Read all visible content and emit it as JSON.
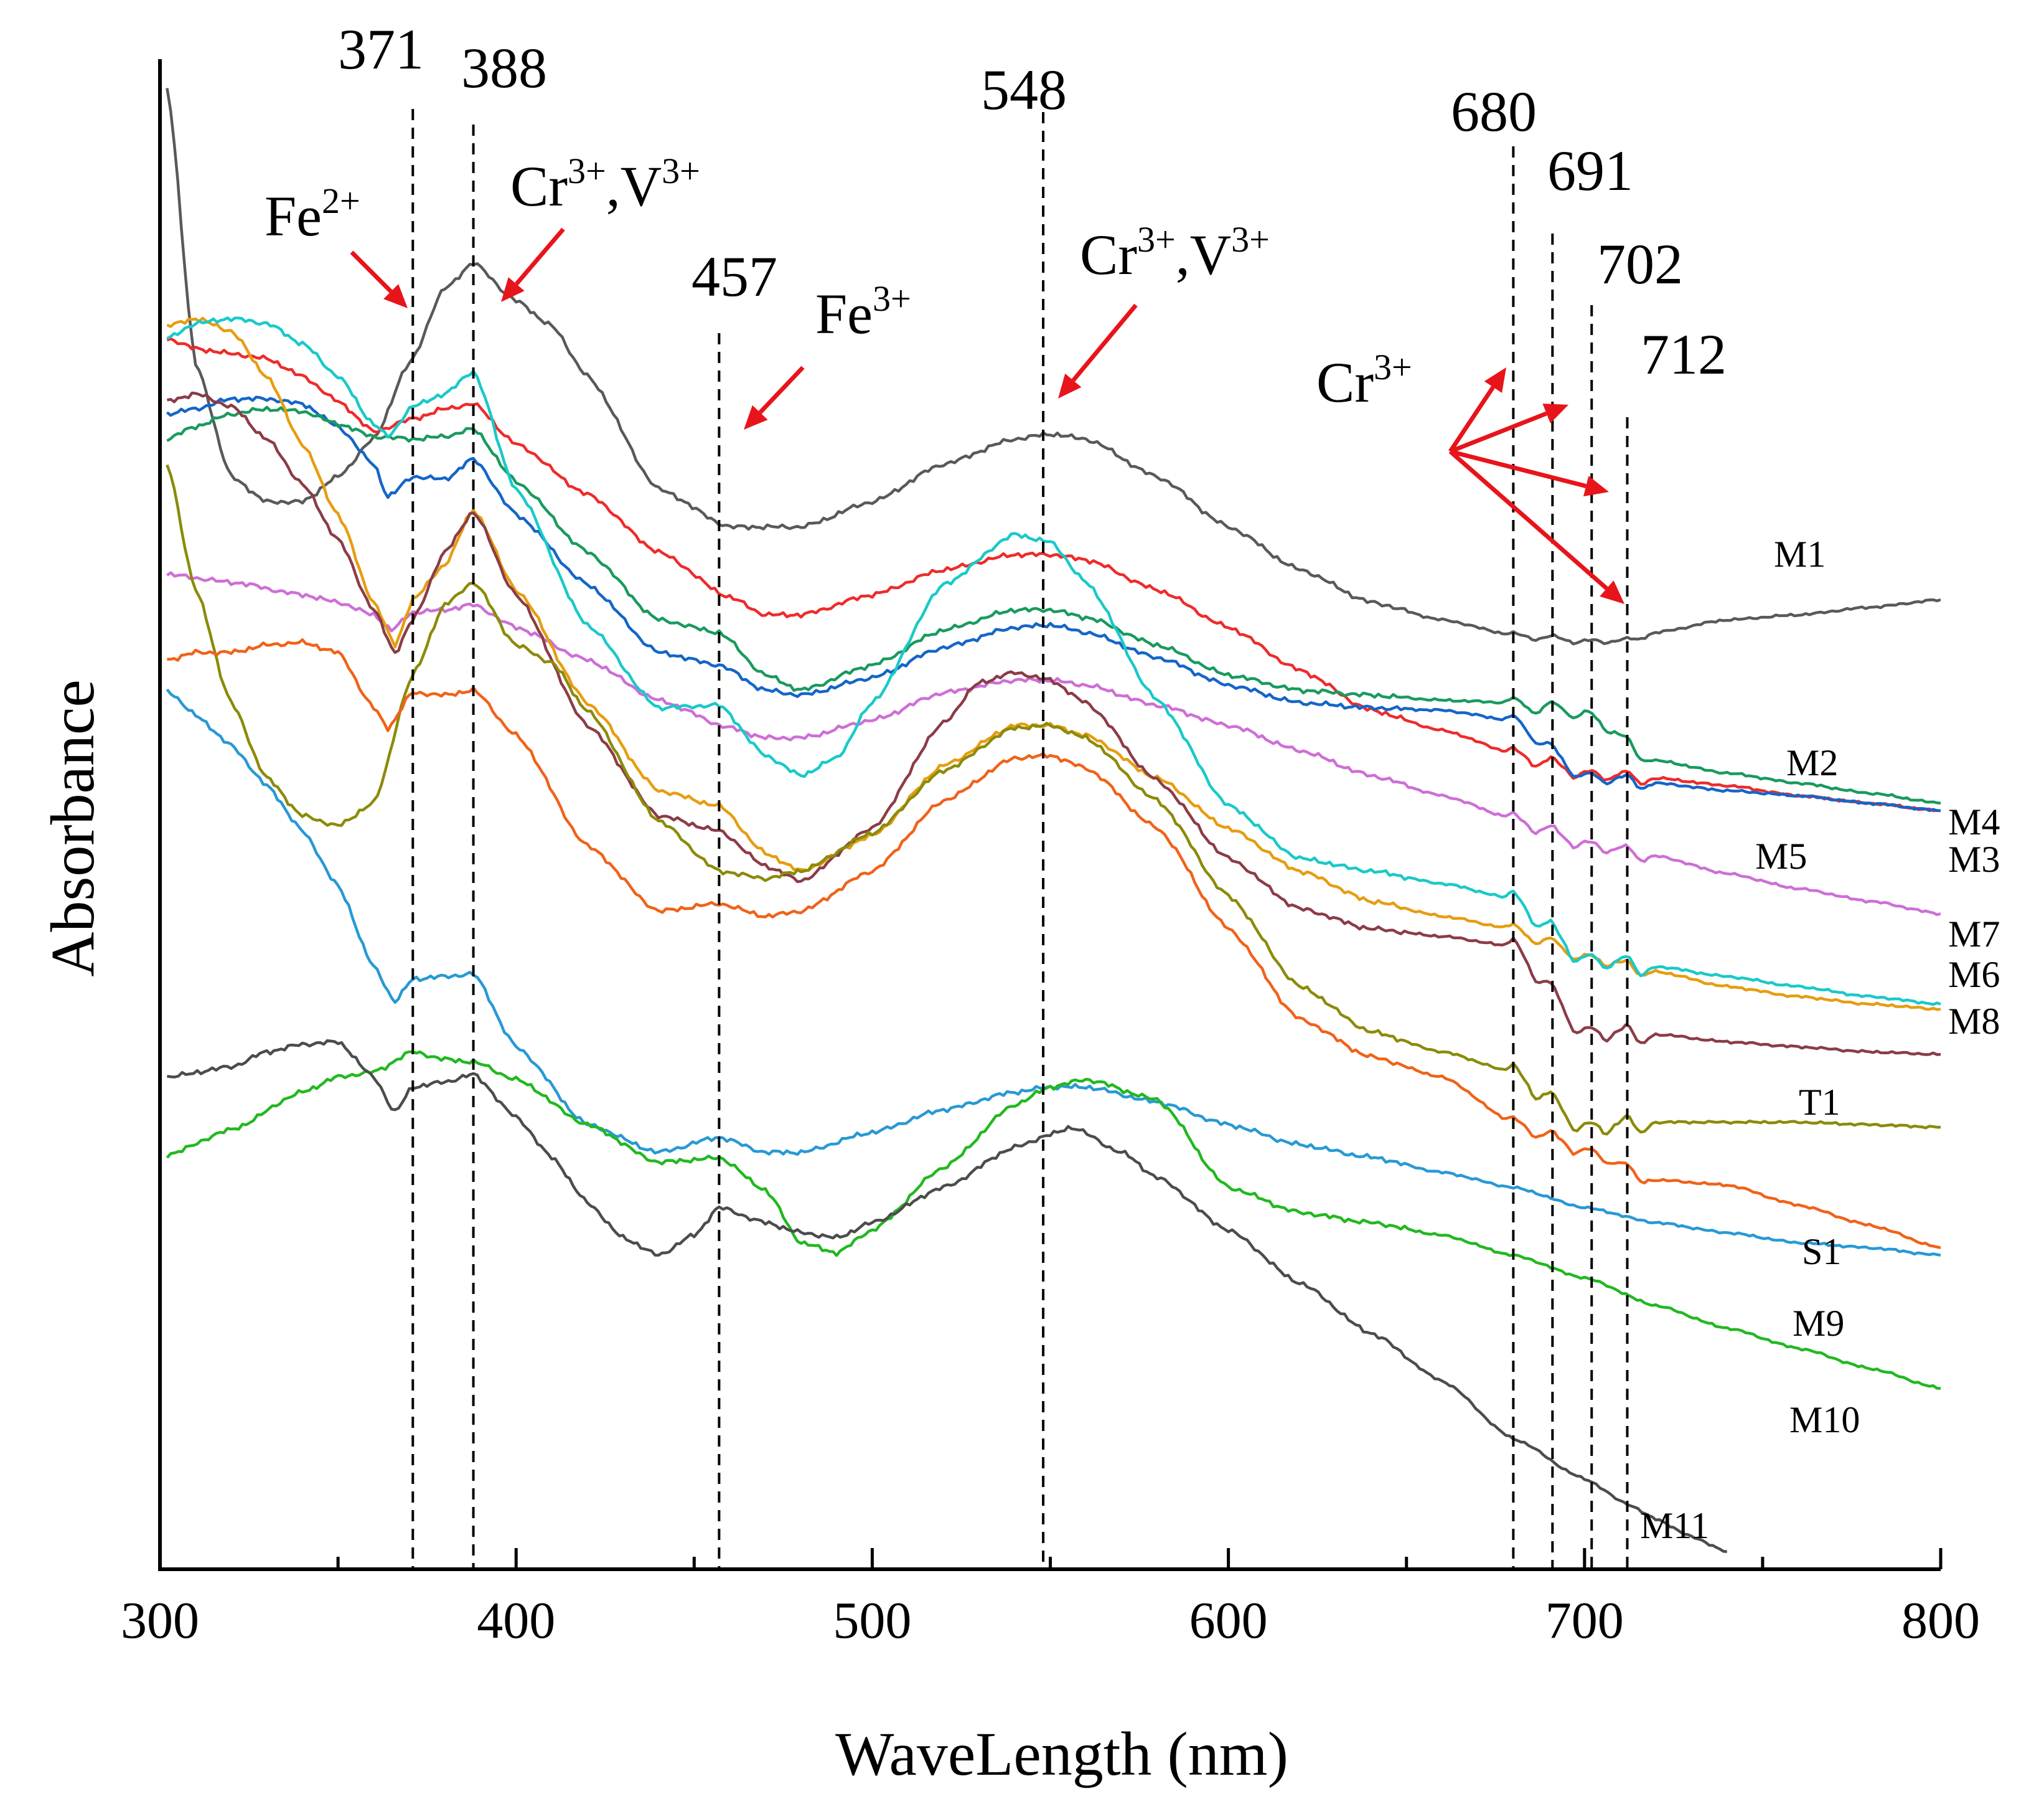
{
  "chart_data": {
    "type": "line",
    "title": "",
    "xlabel": "WaveLength (nm)",
    "ylabel": "Absorbance",
    "xlim": [
      300,
      800
    ],
    "x_ticks": [
      300,
      400,
      500,
      600,
      700,
      800
    ],
    "grid": false,
    "legend": "inline labels at right end of curves",
    "peak_lines": [
      {
        "x": 371,
        "label": "371"
      },
      {
        "x": 388,
        "label": "388"
      },
      {
        "x": 457,
        "label": "457"
      },
      {
        "x": 548,
        "label": "548"
      },
      {
        "x": 680,
        "label": "680"
      },
      {
        "x": 691,
        "label": "691"
      },
      {
        "x": 702,
        "label": "702"
      },
      {
        "x": 712,
        "label": "712"
      }
    ],
    "annotations": [
      {
        "text": "Fe",
        "sup": "2+",
        "arrow_color": "#e8141b"
      },
      {
        "text": "Cr",
        "sup": "3+",
        "text2": ",V",
        "sup2": "3+",
        "arrow_color": "#e8141b"
      },
      {
        "text": "Fe",
        "sup": "3+",
        "arrow_color": "#e8141b"
      },
      {
        "text": "Cr",
        "sup": "3+",
        "text2": ",V",
        "sup2": "3+",
        "arrow_color": "#e8141b"
      },
      {
        "text": "Cr",
        "sup": "3+",
        "arrow_color": "#e8141b"
      }
    ],
    "series": [
      {
        "name": "M1",
        "color": "#595959",
        "x": [
          302,
          310,
          320,
          330,
          340,
          350,
          360,
          370,
          380,
          388,
          400,
          410,
          420,
          440,
          460,
          480,
          500,
          520,
          540,
          550,
          560,
          580,
          600,
          620,
          640,
          660,
          680,
          700,
          712,
          720,
          740,
          760,
          780,
          800
        ],
        "y": [
          99,
          88,
          83.5,
          82.5,
          82.5,
          83.5,
          85,
          88,
          91,
          92,
          90.5,
          89.5,
          87.5,
          83,
          81.5,
          81.5,
          82.5,
          84,
          85,
          85.2,
          85,
          83.5,
          81.5,
          79.8,
          78.5,
          77.8,
          77.2,
          77,
          77,
          77.3,
          77.8,
          78,
          78.3,
          78.6
        ]
      },
      {
        "name": "M2",
        "color": "#ee2b2b",
        "x": [
          302,
          310,
          320,
          330,
          340,
          350,
          360,
          371,
          380,
          388,
          400,
          420,
          440,
          460,
          470,
          480,
          500,
          520,
          540,
          550,
          560,
          580,
          600,
          620,
          640,
          660,
          680,
          700,
          720,
          740,
          760,
          780,
          800
        ],
        "y": [
          89,
          88.6,
          88.4,
          88.2,
          87.5,
          86.5,
          85.3,
          85.8,
          86.2,
          86.4,
          84.8,
          82.8,
          80.5,
          78.7,
          78,
          78,
          78.8,
          79.8,
          80.4,
          80.4,
          80.2,
          79,
          77.5,
          75.8,
          74.2,
          73.4,
          72.5,
          71.8,
          71.5,
          71.2,
          70.8,
          70.5,
          70.2
        ]
      },
      {
        "name": "M3",
        "color": "#1565c8",
        "x": [
          302,
          310,
          320,
          330,
          340,
          350,
          360,
          364,
          371,
          380,
          388,
          400,
          420,
          440,
          457,
          470,
          480,
          500,
          520,
          540,
          550,
          560,
          580,
          600,
          620,
          640,
          660,
          680,
          700,
          720,
          740,
          760,
          780,
          800
        ],
        "y": [
          86,
          86.2,
          86.6,
          86.6,
          86.4,
          85.5,
          84,
          82.7,
          83.5,
          83.4,
          84.2,
          82,
          79.2,
          76.5,
          76,
          75,
          74.8,
          75.5,
          76.7,
          77.5,
          77.6,
          77.3,
          76.3,
          75.2,
          74.5,
          74.3,
          74.2,
          73.8,
          71.7,
          71.3,
          71,
          70.8,
          70.5,
          70.2
        ]
      },
      {
        "name": "M4",
        "color": "#1a9a5e",
        "x": [
          302,
          310,
          320,
          330,
          340,
          350,
          360,
          371,
          380,
          388,
          400,
          420,
          440,
          457,
          470,
          480,
          500,
          520,
          540,
          550,
          560,
          580,
          600,
          620,
          640,
          660,
          680,
          700,
          720,
          740,
          760,
          780,
          800
        ],
        "y": [
          85,
          85.5,
          86,
          86.2,
          86.1,
          85.6,
          85.1,
          85,
          85.1,
          85.4,
          83.3,
          80.5,
          77.8,
          77.3,
          75.6,
          75,
          76,
          77.4,
          78.2,
          78.2,
          77.9,
          76.8,
          75.6,
          75,
          74.8,
          74.6,
          74.5,
          74.2,
          72.2,
          71.7,
          71.3,
          70.9,
          70.5
        ]
      },
      {
        "name": "M5",
        "color": "#cd6fd6",
        "x": [
          302,
          320,
          340,
          350,
          360,
          365,
          371,
          380,
          388,
          400,
          420,
          440,
          460,
          470,
          480,
          500,
          520,
          540,
          550,
          560,
          580,
          600,
          620,
          640,
          660,
          680,
          700,
          720,
          740,
          760,
          780,
          800
        ],
        "y": [
          79.6,
          79.3,
          78.8,
          78.5,
          78,
          77.4,
          78.1,
          78.2,
          78.4,
          77.5,
          76.2,
          74.6,
          73.5,
          73.1,
          73.1,
          73.8,
          74.9,
          75.4,
          75.4,
          75.2,
          74.4,
          73.6,
          72.6,
          71.6,
          70.8,
          69.9,
          69,
          68.4,
          67.7,
          67.1,
          66.6,
          66.1
        ]
      },
      {
        "name": "M6",
        "color": "#e69d10",
        "x": [
          302,
          310,
          320,
          330,
          340,
          350,
          360,
          366,
          371,
          380,
          388,
          400,
          420,
          440,
          457,
          470,
          480,
          500,
          520,
          540,
          550,
          560,
          580,
          600,
          620,
          640,
          660,
          680,
          700,
          720,
          740,
          760,
          780,
          800
        ],
        "y": [
          89.5,
          89.8,
          89.3,
          87.5,
          84.8,
          82,
          78.5,
          76.8,
          78.6,
          80,
          82.2,
          79,
          74.5,
          71,
          70.4,
          68.5,
          67.8,
          69.2,
          72,
          73.6,
          73.6,
          73.2,
          71.5,
          69.5,
          67.8,
          66.6,
          66,
          65.5,
          64.5,
          63.8,
          63.2,
          62.8,
          62.5,
          62.3
        ]
      },
      {
        "name": "M7",
        "color": "#1ac9c9",
        "x": [
          302,
          310,
          320,
          330,
          340,
          350,
          360,
          364,
          371,
          380,
          388,
          400,
          420,
          440,
          457,
          470,
          480,
          490,
          500,
          520,
          540,
          550,
          560,
          580,
          600,
          620,
          640,
          660,
          680,
          700,
          720,
          740,
          760,
          780,
          800
        ],
        "y": [
          89,
          89.6,
          89.8,
          89.6,
          88.8,
          87.5,
          85.6,
          85.1,
          86.3,
          86.8,
          87.7,
          83,
          77.6,
          74.3,
          74.4,
          72.4,
          71.6,
          72.3,
          74.5,
          79.2,
          81.2,
          80.9,
          79.3,
          74.6,
          70.4,
          68.3,
          67.8,
          67.3,
          66.7,
          64.5,
          64,
          63.6,
          63.2,
          62.8,
          62.5
        ]
      },
      {
        "name": "M8",
        "color": "#8b3c47",
        "x": [
          302,
          310,
          320,
          330,
          340,
          350,
          360,
          366,
          371,
          380,
          388,
          400,
          420,
          440,
          457,
          470,
          480,
          500,
          520,
          530,
          540,
          550,
          560,
          580,
          600,
          620,
          640,
          660,
          680,
          700,
          720,
          740,
          760,
          780,
          800
        ],
        "y": [
          86.5,
          86.8,
          86.3,
          85,
          83.2,
          81,
          78.2,
          76.5,
          77.8,
          80.5,
          82.1,
          78.8,
          73.6,
          70,
          69.4,
          68,
          67.4,
          69.5,
          73.7,
          75.3,
          75.7,
          75.4,
          74.5,
          71.4,
          68.3,
          66.3,
          65.5,
          65.2,
          64.8,
          61.6,
          61.3,
          61,
          60.8,
          60.6,
          60.5
        ]
      },
      {
        "name": "T1",
        "color": "#8b8b0b",
        "x": [
          302,
          310,
          320,
          330,
          340,
          350,
          360,
          371,
          380,
          388,
          400,
          410,
          420,
          440,
          457,
          470,
          480,
          500,
          520,
          540,
          550,
          560,
          580,
          600,
          620,
          640,
          660,
          680,
          700,
          720,
          740,
          760,
          780,
          800
        ],
        "y": [
          84,
          79,
          74.5,
          71.5,
          70,
          69.6,
          70.5,
          75.6,
          78.4,
          79.3,
          76.8,
          76.1,
          74.2,
          69.8,
          67.8,
          67.5,
          67.8,
          69.3,
          71.8,
          73.5,
          73.6,
          73.1,
          70.6,
          66.8,
          63.2,
          61.4,
          60.6,
          59.8,
          57.8,
          57.8,
          57.8,
          57.8,
          57.7,
          57.6
        ]
      },
      {
        "name": "S1",
        "color": "#f0621a",
        "x": [
          302,
          310,
          320,
          330,
          340,
          350,
          360,
          364,
          371,
          380,
          388,
          400,
          420,
          440,
          457,
          470,
          480,
          500,
          520,
          540,
          550,
          560,
          580,
          600,
          620,
          640,
          660,
          680,
          700,
          720,
          740,
          760,
          780,
          800
        ],
        "y": [
          76.2,
          76.5,
          76.5,
          76.8,
          76.9,
          76.5,
          74.3,
          73.5,
          74.9,
          74.8,
          75,
          73.2,
          68.8,
          66.2,
          66.5,
          66,
          66.2,
          67.8,
          70.6,
          72.3,
          72.4,
          71.9,
          69.5,
          65.5,
          61.9,
          60.4,
          59.6,
          57.8,
          56.8,
          55.5,
          55.3,
          54.5,
          53.7,
          52.8
        ]
      },
      {
        "name": "M9",
        "color": "#2899d4",
        "x": [
          302,
          310,
          320,
          330,
          340,
          350,
          360,
          366,
          371,
          380,
          388,
          400,
          420,
          440,
          457,
          470,
          480,
          500,
          520,
          540,
          550,
          560,
          580,
          600,
          620,
          640,
          660,
          680,
          700,
          720,
          740,
          760,
          780,
          800
        ],
        "y": [
          75,
          74,
          72.8,
          71.2,
          69.4,
          67.2,
          64,
          62.6,
          63.5,
          63.6,
          63.7,
          60.8,
          57.7,
          56.6,
          57.2,
          56.6,
          56.6,
          57.4,
          58.3,
          59,
          59.2,
          59.2,
          58.6,
          57.7,
          56.9,
          56.4,
          55.8,
          55.2,
          54.4,
          53.8,
          53.4,
          53,
          52.8,
          52.5
        ]
      },
      {
        "name": "M10",
        "color": "#22b81f",
        "x": [
          302,
          320,
          340,
          350,
          360,
          371,
          380,
          388,
          400,
          420,
          440,
          450,
          457,
          470,
          480,
          490,
          500,
          520,
          540,
          550,
          560,
          580,
          600,
          620,
          640,
          660,
          680,
          700,
          720,
          740,
          760,
          780,
          800
        ],
        "y": [
          56.5,
          57.5,
          59,
          59.6,
          59.8,
          60.6,
          60.3,
          60.2,
          59.5,
          57.7,
          56.2,
          56.3,
          56.4,
          55.1,
          53,
          52.6,
          53.5,
          56,
          58.5,
          59.2,
          59.5,
          58.7,
          55.2,
          54.2,
          53.8,
          53.3,
          52.5,
          51.6,
          50.5,
          49.6,
          48.8,
          48,
          47.2
        ]
      },
      {
        "name": "M11",
        "color": "#4c4c4c",
        "x": [
          302,
          320,
          330,
          340,
          350,
          360,
          366,
          371,
          380,
          388,
          400,
          410,
          420,
          430,
          440,
          450,
          457,
          470,
          480,
          490,
          500,
          520,
          540,
          550,
          556,
          570,
          580,
          600,
          620,
          640,
          660,
          680,
          700,
          712,
          720,
          730,
          740
        ],
        "y": [
          59.6,
          60,
          60.6,
          60.9,
          61,
          59.6,
          58.2,
          59.2,
          59.4,
          59.7,
          58,
          56.4,
          54.6,
          53.2,
          52.5,
          53.3,
          54.4,
          53.8,
          53.4,
          53.2,
          53.8,
          55.2,
          56.8,
          57.3,
          57.6,
          56.6,
          55.6,
          53.5,
          51.4,
          49.4,
          47.5,
          45.2,
          43.6,
          42.6,
          42,
          41.3,
          40.7
        ]
      }
    ]
  }
}
